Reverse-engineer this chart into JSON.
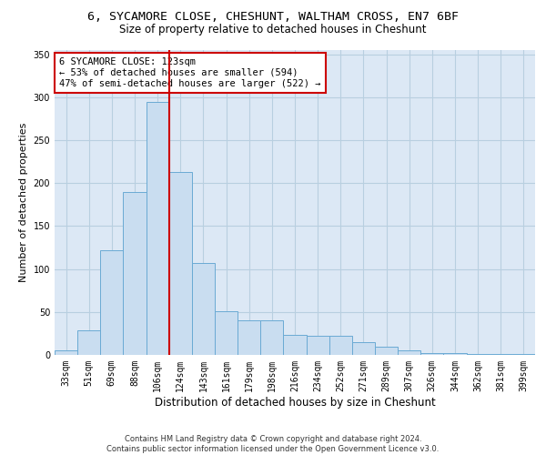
{
  "title_line1": "6, SYCAMORE CLOSE, CHESHUNT, WALTHAM CROSS, EN7 6BF",
  "title_line2": "Size of property relative to detached houses in Cheshunt",
  "xlabel": "Distribution of detached houses by size in Cheshunt",
  "ylabel": "Number of detached properties",
  "categories": [
    "33sqm",
    "51sqm",
    "69sqm",
    "88sqm",
    "106sqm",
    "124sqm",
    "143sqm",
    "161sqm",
    "179sqm",
    "198sqm",
    "216sqm",
    "234sqm",
    "252sqm",
    "271sqm",
    "289sqm",
    "307sqm",
    "326sqm",
    "344sqm",
    "362sqm",
    "381sqm",
    "399sqm"
  ],
  "values": [
    5,
    29,
    122,
    190,
    295,
    213,
    107,
    51,
    40,
    40,
    23,
    22,
    22,
    15,
    10,
    5,
    2,
    2,
    1,
    1,
    1
  ],
  "bar_color": "#c9ddf0",
  "bar_edge_color": "#6aaad4",
  "vline_color": "#cc0000",
  "vline_x_index": 5,
  "annotation_text": "6 SYCAMORE CLOSE: 123sqm\n← 53% of detached houses are smaller (594)\n47% of semi-detached houses are larger (522) →",
  "annotation_box_color": "white",
  "annotation_box_edge_color": "#cc0000",
  "ylim": [
    0,
    355
  ],
  "yticks": [
    0,
    50,
    100,
    150,
    200,
    250,
    300,
    350
  ],
  "grid_color": "#b8cfe0",
  "background_color": "#dce8f5",
  "footer_line1": "Contains HM Land Registry data © Crown copyright and database right 2024.",
  "footer_line2": "Contains public sector information licensed under the Open Government Licence v3.0.",
  "title_fontsize": 9.5,
  "subtitle_fontsize": 8.5,
  "tick_fontsize": 7,
  "xlabel_fontsize": 8.5,
  "ylabel_fontsize": 8,
  "footer_fontsize": 6,
  "annotation_fontsize": 7.5
}
